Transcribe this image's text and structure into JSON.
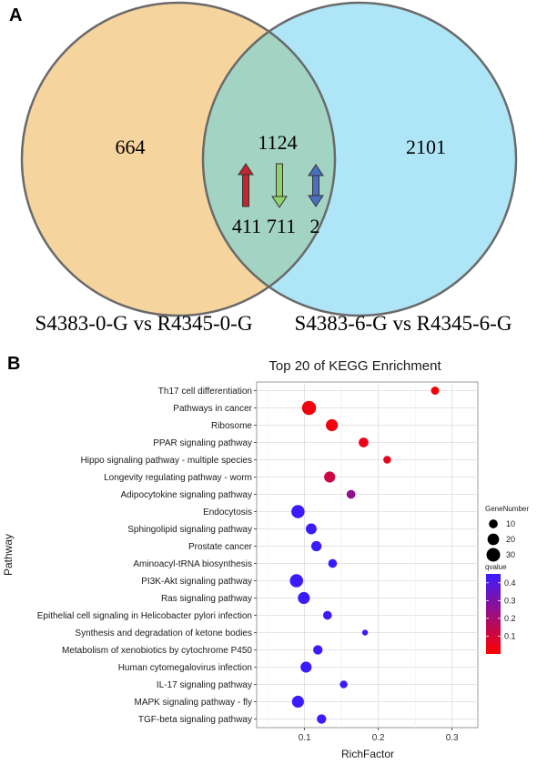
{
  "panels": {
    "a_label": "A",
    "b_label": "B"
  },
  "chart_data": [
    {
      "type": "venn",
      "sets": [
        {
          "name": "S4383-0-G vs R4345-0-G",
          "color": "#f5d49e",
          "unique": 664
        },
        {
          "name": "S4383-6-G vs R4345-6-G",
          "color": "#aee6f8",
          "unique": 2101
        }
      ],
      "intersection": {
        "total": 1124,
        "color": "#a3d4c3",
        "breakdown": [
          {
            "value": 411,
            "arrow": "up",
            "color": "#c0262e"
          },
          {
            "value": 711,
            "arrow": "down",
            "color": "#8fd26a"
          },
          {
            "value": 2,
            "arrow": "both",
            "color": "#4a6fc0"
          }
        ]
      }
    },
    {
      "type": "scatter",
      "title": "Top 20 of KEGG Enrichment",
      "xlabel": "RichFactor",
      "ylabel": "Pathway",
      "xlim": [
        0.035,
        0.335
      ],
      "xticks": [
        0.1,
        0.2,
        0.3
      ],
      "grid": true,
      "size_legend": {
        "title": "GeneNumber",
        "values": [
          10,
          20,
          30
        ]
      },
      "color_legend": {
        "title": "qvalue",
        "ticks": [
          0.4,
          0.3,
          0.2,
          0.1
        ],
        "range": [
          0.0,
          0.45
        ],
        "low_color": "#ff0000",
        "high_color": "#3b1cff"
      },
      "points": [
        {
          "pathway": "Th17 cell differentiation",
          "x": 0.277,
          "gene_number": 8,
          "qvalue": 0.02
        },
        {
          "pathway": "Pathways in cancer",
          "x": 0.106,
          "gene_number": 32,
          "qvalue": 0.03
        },
        {
          "pathway": "Ribosome",
          "x": 0.137,
          "gene_number": 22,
          "qvalue": 0.03
        },
        {
          "pathway": "PPAR signaling pathway",
          "x": 0.18,
          "gene_number": 13,
          "qvalue": 0.04
        },
        {
          "pathway": "Hippo signaling pathway - multiple species",
          "x": 0.212,
          "gene_number": 7,
          "qvalue": 0.06
        },
        {
          "pathway": "Longevity regulating pathway - worm",
          "x": 0.134,
          "gene_number": 18,
          "qvalue": 0.12
        },
        {
          "pathway": "Adipocytokine signaling pathway",
          "x": 0.163,
          "gene_number": 10,
          "qvalue": 0.25
        },
        {
          "pathway": "Endocytosis",
          "x": 0.091,
          "gene_number": 28,
          "qvalue": 0.45
        },
        {
          "pathway": "Sphingolipid signaling pathway",
          "x": 0.109,
          "gene_number": 17,
          "qvalue": 0.45
        },
        {
          "pathway": "Prostate cancer",
          "x": 0.116,
          "gene_number": 15,
          "qvalue": 0.45
        },
        {
          "pathway": "Aminoacyl-tRNA biosynthesis",
          "x": 0.138,
          "gene_number": 10,
          "qvalue": 0.45
        },
        {
          "pathway": "PI3K-Akt signaling pathway",
          "x": 0.089,
          "gene_number": 28,
          "qvalue": 0.45
        },
        {
          "pathway": "Ras signaling pathway",
          "x": 0.099,
          "gene_number": 22,
          "qvalue": 0.45
        },
        {
          "pathway": "Epithelial cell signaling in Helicobacter pylori infection",
          "x": 0.131,
          "gene_number": 10,
          "qvalue": 0.45
        },
        {
          "pathway": "Synthesis and degradation of ketone bodies",
          "x": 0.182,
          "gene_number": 3,
          "qvalue": 0.45
        },
        {
          "pathway": "Metabolism of xenobiotics by cytochrome P450",
          "x": 0.118,
          "gene_number": 12,
          "qvalue": 0.45
        },
        {
          "pathway": "Human cytomegalovirus infection",
          "x": 0.102,
          "gene_number": 18,
          "qvalue": 0.45
        },
        {
          "pathway": "IL-17 signaling pathway",
          "x": 0.153,
          "gene_number": 7,
          "qvalue": 0.45
        },
        {
          "pathway": "MAPK signaling pathway - fly",
          "x": 0.091,
          "gene_number": 22,
          "qvalue": 0.45
        },
        {
          "pathway": "TGF-beta signaling pathway",
          "x": 0.123,
          "gene_number": 12,
          "qvalue": 0.45
        }
      ]
    }
  ]
}
